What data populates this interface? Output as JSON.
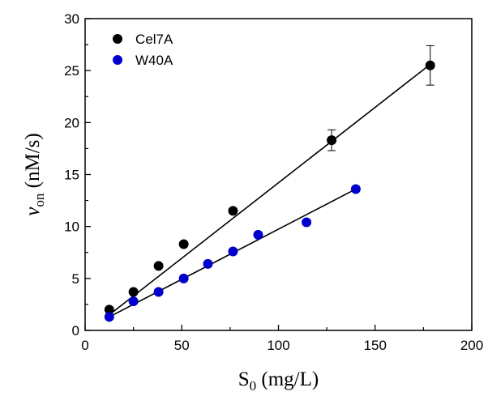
{
  "chart_data": {
    "type": "scatter",
    "xlabel": {
      "base": "S",
      "sub": "0",
      "rest": " (mg/L)"
    },
    "ylabel": {
      "base": "v",
      "sub": "on",
      "rest": " (nM/s)"
    },
    "xlim": [
      0,
      200
    ],
    "ylim": [
      0,
      30
    ],
    "xticks": [
      0,
      50,
      100,
      150,
      200
    ],
    "yticks": [
      0,
      5,
      10,
      15,
      20,
      25,
      30
    ],
    "grid": false,
    "legend_position": "top-left",
    "series": [
      {
        "name": "Cel7A",
        "color": "#000000",
        "x": [
          12.5,
          25,
          38,
          51,
          76.5,
          127.5,
          178.5
        ],
        "y": [
          2.0,
          3.7,
          6.2,
          8.3,
          11.5,
          18.3,
          25.5
        ],
        "error": [
          null,
          null,
          null,
          null,
          null,
          1.0,
          1.9
        ],
        "fit": {
          "x": [
            12.5,
            178.5
          ],
          "y": [
            1.5,
            25.6
          ]
        }
      },
      {
        "name": "W40A",
        "color": "#0000cc",
        "x": [
          12.5,
          25,
          38,
          51,
          63.5,
          76.5,
          89.5,
          114.5,
          140
        ],
        "y": [
          1.3,
          2.8,
          3.7,
          5.0,
          6.4,
          7.6,
          9.2,
          10.4,
          13.6
        ],
        "fit": {
          "x": [
            12.5,
            140
          ],
          "y": [
            1.3,
            13.6
          ]
        }
      }
    ]
  }
}
